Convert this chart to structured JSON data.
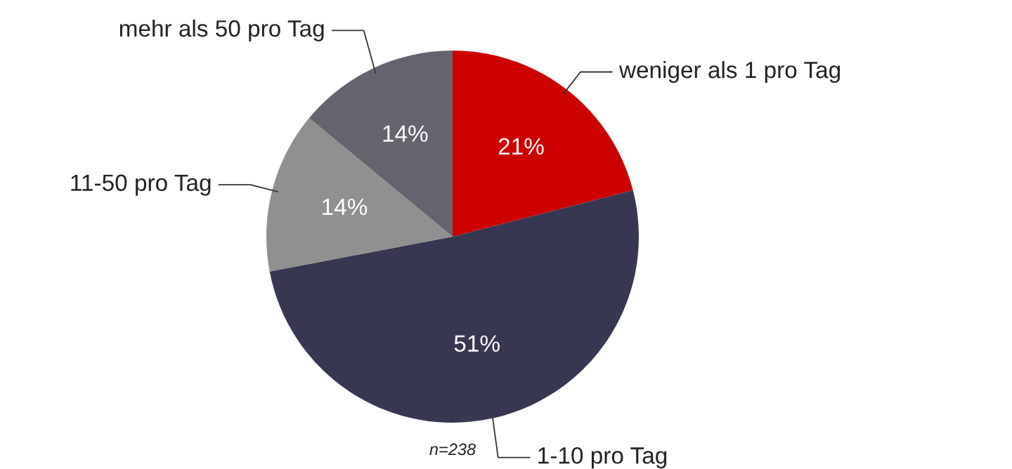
{
  "chart_data": {
    "type": "pie",
    "categories": [
      "weniger als 1 pro Tag",
      "1-10 pro Tag",
      "11-50 pro Tag",
      "mehr als 50 pro Tag"
    ],
    "values": [
      21,
      51,
      14,
      14
    ],
    "value_labels": [
      "21%",
      "51%",
      "14%",
      "14%"
    ],
    "colors": [
      "#cc0000",
      "#383751",
      "#909090",
      "#66636f"
    ],
    "annotations": [
      "n=238"
    ]
  }
}
